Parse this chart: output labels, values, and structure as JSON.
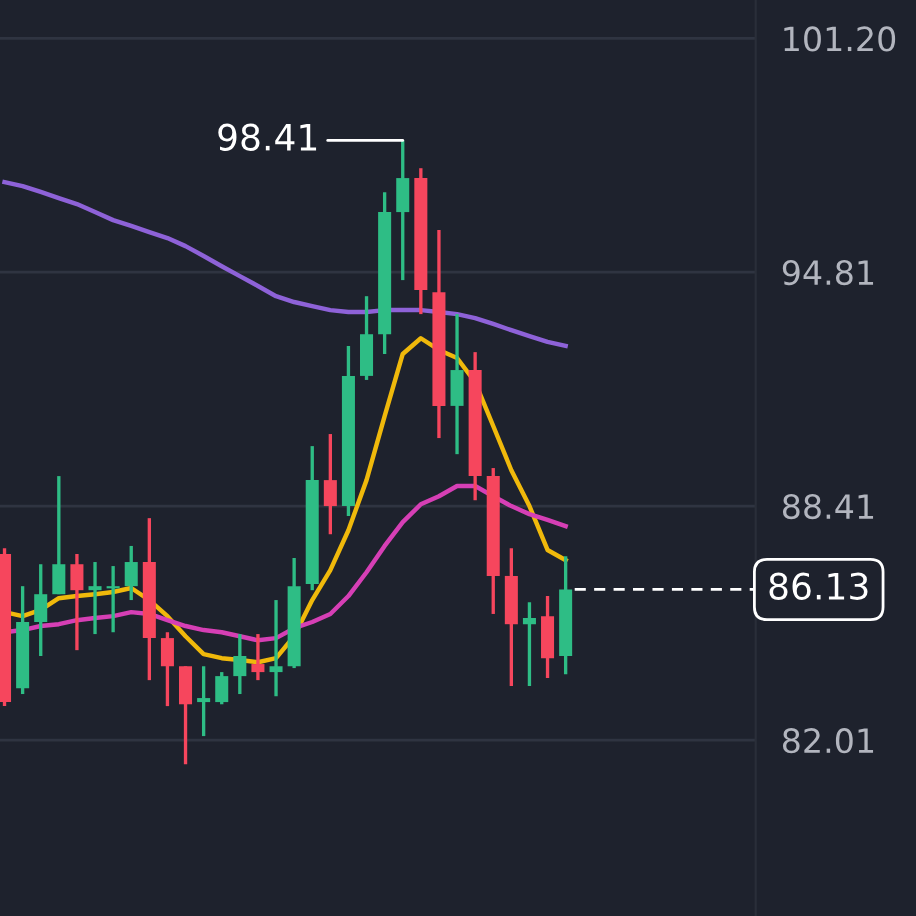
{
  "chart_data": {
    "type": "candlestick",
    "categories": [
      null,
      null,
      null,
      null,
      null,
      null,
      null,
      null,
      null,
      null,
      null,
      null,
      null,
      null,
      null,
      null,
      null,
      null,
      null,
      null,
      null,
      null,
      null,
      null,
      null,
      null,
      null,
      null,
      null,
      null,
      null,
      null
    ],
    "ohlc": [
      [
        87.1,
        87.26,
        82.94,
        83.05
      ],
      [
        83.43,
        86.22,
        83.27,
        85.24
      ],
      [
        85.24,
        86.82,
        84.31,
        86.0
      ],
      [
        86.0,
        89.23,
        86.0,
        86.82
      ],
      [
        86.82,
        87.1,
        84.47,
        86.11
      ],
      [
        86.11,
        86.88,
        84.91,
        86.22
      ],
      [
        86.16,
        86.77,
        84.96,
        86.22
      ],
      [
        86.22,
        87.32,
        85.84,
        86.88
      ],
      [
        86.88,
        88.08,
        83.65,
        84.8
      ],
      [
        84.8,
        84.96,
        82.94,
        84.03
      ],
      [
        84.03,
        84.03,
        81.35,
        82.99
      ],
      [
        83.05,
        84.03,
        82.12,
        83.16
      ],
      [
        83.05,
        83.87,
        82.99,
        83.76
      ],
      [
        83.76,
        84.91,
        83.27,
        84.31
      ],
      [
        84.09,
        84.91,
        83.65,
        83.87
      ],
      [
        83.87,
        85.84,
        83.21,
        84.03
      ],
      [
        84.03,
        86.99,
        83.98,
        86.22
      ],
      [
        86.28,
        90.05,
        86.11,
        89.12
      ],
      [
        89.12,
        90.38,
        87.64,
        88.41
      ],
      [
        88.41,
        92.79,
        88.14,
        91.97
      ],
      [
        91.97,
        94.15,
        91.86,
        93.11
      ],
      [
        93.11,
        96.99,
        92.57,
        96.45
      ],
      [
        96.45,
        98.41,
        94.59,
        97.38
      ],
      [
        97.38,
        97.65,
        93.66,
        94.32
      ],
      [
        94.26,
        95.96,
        90.27,
        91.15
      ],
      [
        91.15,
        93.66,
        89.83,
        92.13
      ],
      [
        92.13,
        92.62,
        88.57,
        89.23
      ],
      [
        89.23,
        89.45,
        85.46,
        86.5
      ],
      [
        86.5,
        87.26,
        83.49,
        85.18
      ],
      [
        85.18,
        85.78,
        83.49,
        85.35
      ],
      [
        85.4,
        85.95,
        83.71,
        84.25
      ],
      [
        84.31,
        87.04,
        83.81,
        86.13
      ]
    ],
    "colors": [
      "#f6465d",
      "#2ebd85",
      "#2ebd85",
      "#2ebd85",
      "#f6465d",
      "#2ebd85",
      "#2ebd85",
      "#2ebd85",
      "#f6465d",
      "#f6465d",
      "#f6465d",
      "#2ebd85",
      "#2ebd85",
      "#2ebd85",
      "#f6465d",
      "#2ebd85",
      "#2ebd85",
      "#2ebd85",
      "#f6465d",
      "#2ebd85",
      "#2ebd85",
      "#2ebd85",
      "#2ebd85",
      "#f6465d",
      "#f6465d",
      "#2ebd85",
      "#f6465d",
      "#f6465d",
      "#f6465d",
      "#2ebd85",
      "#f6465d",
      "#2ebd85"
    ],
    "series": [
      {
        "type": "line",
        "color": "#8e62d8",
        "values": [
          97.27,
          97.16,
          97.0,
          96.83,
          96.67,
          96.45,
          96.23,
          96.07,
          95.9,
          95.74,
          95.52,
          95.25,
          94.97,
          94.7,
          94.43,
          94.15,
          93.99,
          93.88,
          93.77,
          93.72,
          93.72,
          93.77,
          93.77,
          93.77,
          93.72,
          93.66,
          93.55,
          93.39,
          93.22,
          93.06,
          92.9,
          92.79
        ]
      },
      {
        "type": "line",
        "color": "#f0b90b",
        "values": [
          85.51,
          85.4,
          85.57,
          85.89,
          85.95,
          86.0,
          86.06,
          86.17,
          85.84,
          85.4,
          84.85,
          84.36,
          84.25,
          84.2,
          84.14,
          84.25,
          84.85,
          85.84,
          86.66,
          87.75,
          89.12,
          90.87,
          92.57,
          93.0,
          92.68,
          92.46,
          91.8,
          90.6,
          89.39,
          88.41,
          87.21,
          86.93
        ]
      },
      {
        "type": "line",
        "color": "#d63fb5",
        "values": [
          84.96,
          85.02,
          85.13,
          85.18,
          85.29,
          85.35,
          85.4,
          85.51,
          85.46,
          85.29,
          85.13,
          85.02,
          84.96,
          84.85,
          84.74,
          84.8,
          85.07,
          85.24,
          85.46,
          85.95,
          86.6,
          87.32,
          87.97,
          88.46,
          88.68,
          88.96,
          88.96,
          88.68,
          88.41,
          88.19,
          88.03,
          87.86
        ]
      }
    ],
    "ylim": [
      77.2,
      102.25
    ],
    "yticks": [
      82.01,
      88.41,
      94.81,
      {
        "value": 101.2,
        "label": "101.20"
      }
    ],
    "ref_lines": [
      {
        "axis": "y",
        "value": 86.13,
        "label": "86.13",
        "color": "#ffffff",
        "line_style": "dashed"
      }
    ],
    "annotations": [
      "98.41"
    ],
    "grid": "y",
    "tick_labels": "y",
    "legend": false
  }
}
